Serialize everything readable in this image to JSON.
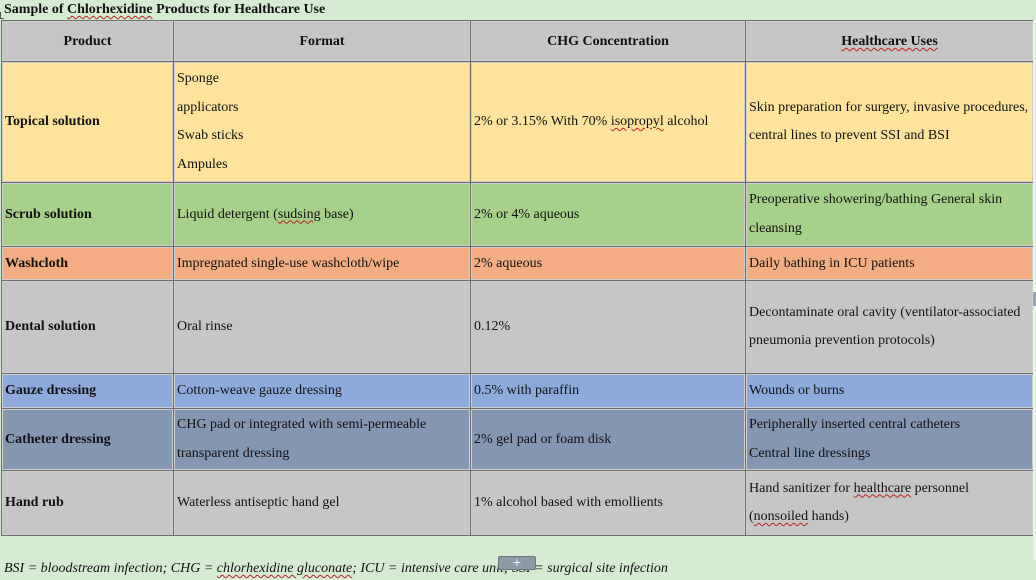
{
  "caption": {
    "prefix": "Sample of ",
    "highlight": "Chlorhexidine",
    "suffix": " Products for Healthcare Use"
  },
  "headers": {
    "product": "Product",
    "format": "Format",
    "concentration": "CHG Concentration",
    "uses": "Healthcare Uses"
  },
  "rows": [
    {
      "product": "Topical solution",
      "format_lines": [
        "Sponge",
        "applicators",
        "Swab sticks",
        "Ampules"
      ],
      "concentration_pre": "2% or 3.15% With 70% ",
      "concentration_flag": "isopropyl",
      "concentration_post": " alcohol",
      "uses": "Skin preparation for surgery, invasive procedures, central lines to prevent SSI and BSI"
    },
    {
      "product": "Scrub solution",
      "format_pre": "Liquid detergent (",
      "format_flag": "sudsing",
      "format_post": " base)",
      "concentration": "2% or 4% aqueous",
      "uses": "Preoperative showering/bathing General skin cleansing"
    },
    {
      "product": "Washcloth",
      "format": "Impregnated single-use washcloth/wipe",
      "concentration": "2% aqueous",
      "uses": "Daily bathing in ICU patients"
    },
    {
      "product": "Dental solution",
      "format": "Oral rinse",
      "concentration": "0.12%",
      "uses": "Decontaminate oral cavity (ventilator-associated pneumonia prevention protocols)"
    },
    {
      "product": "Gauze dressing",
      "format": "Cotton-weave gauze dressing",
      "concentration": "0.5% with paraffin",
      "uses": "Wounds or burns"
    },
    {
      "product": "Catheter dressing",
      "format": "CHG pad or integrated with semi-permeable transparent dressing",
      "concentration": "2% gel pad or foam disk",
      "uses_lines": [
        "Peripherally inserted central catheters",
        "Central line dressings"
      ]
    },
    {
      "product": "Hand rub",
      "format": "Waterless antiseptic hand gel",
      "concentration": "1% alcohol based with emollients",
      "uses_pre": "Hand sanitizer for ",
      "uses_flag1": "healthcare",
      "uses_mid": " personnel (",
      "uses_flag2": "nonsoiled",
      "uses_post": " hands)"
    }
  ],
  "footnote": {
    "part1": "BSI = bloodstream infection; CHG = ",
    "flag": "chlorhexidine gluconate",
    "part2": "; ICU = intensive care unit; SSI = surgical site infection"
  },
  "scroll_handle": "+",
  "colors": {
    "background": "#d6ecd2",
    "header": "#c6c6c6",
    "topical": "#fde39c",
    "scrub": "#a7d08a",
    "washcloth": "#f4ad82",
    "dental": "#c6c6c6",
    "gauze": "#8eaadc",
    "catheter": "#8497b0",
    "hand_rub": "#c6c6c6",
    "spell_flag": "#b22222"
  }
}
